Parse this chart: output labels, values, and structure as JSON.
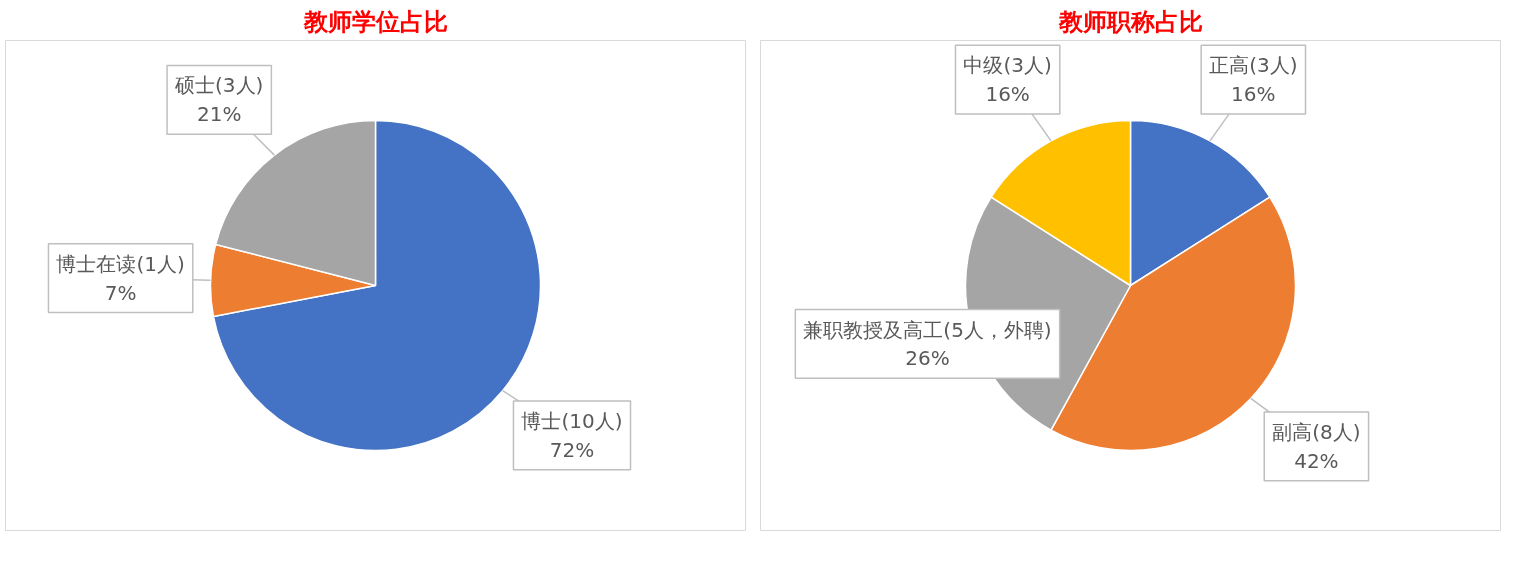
{
  "chart_data": [
    {
      "type": "pie",
      "title": "教师学位占比",
      "categories": [
        "博士(10人)",
        "博士在读(1人)",
        "硕士(3人)"
      ],
      "values": [
        72,
        7,
        21
      ],
      "colors": [
        "#4472c4",
        "#ed7d31",
        "#a5a5a5"
      ],
      "value_labels": [
        "72%",
        "7%",
        "21%"
      ]
    },
    {
      "type": "pie",
      "title": "教师职称占比",
      "categories": [
        "正高(3人)",
        "副高(8人)",
        "兼职教授及高工(5人，外聘)",
        "中级(3人)"
      ],
      "values": [
        16,
        42,
        26,
        16
      ],
      "colors": [
        "#4472c4",
        "#ed7d31",
        "#a5a5a5",
        "#ffc000"
      ],
      "value_labels": [
        "16%",
        "42%",
        "26%",
        "16%"
      ]
    }
  ]
}
